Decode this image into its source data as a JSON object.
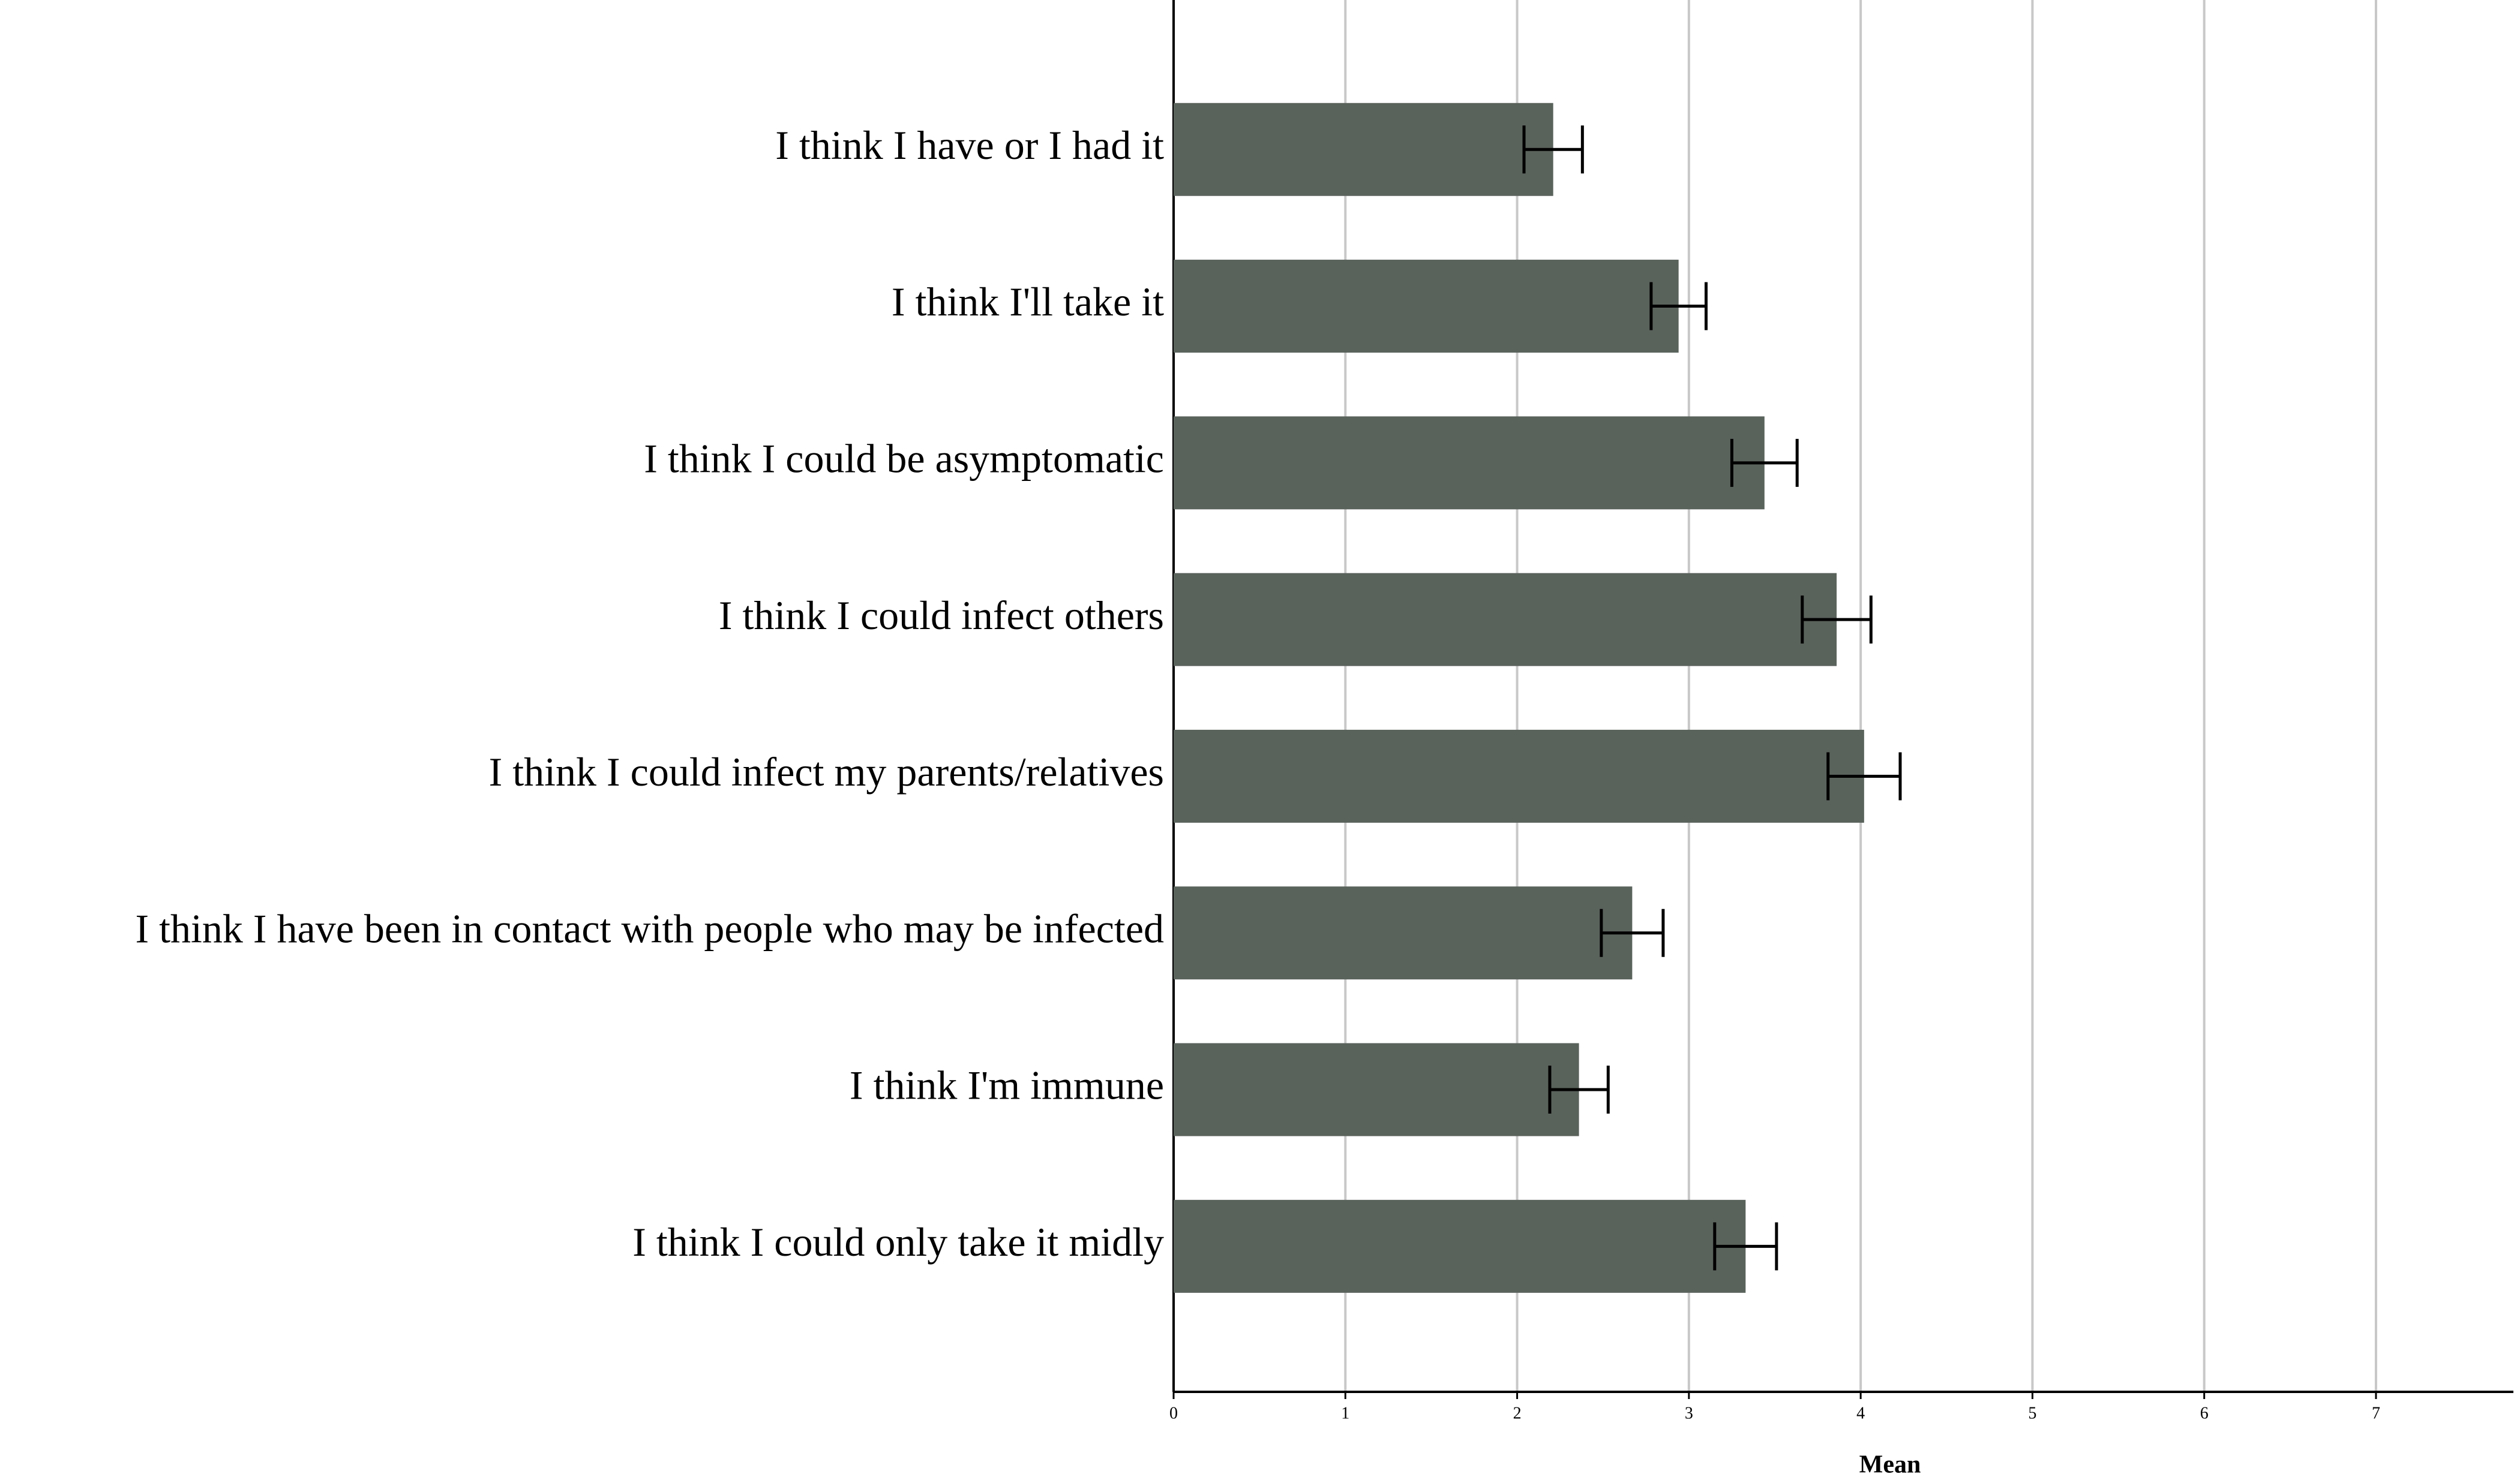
{
  "chart_data": {
    "type": "hbar",
    "x_label": "Mean",
    "categories": [
      "I think I have or I had it",
      "I think I'll take it",
      "I think I could be asymptomatic",
      "I think I could infect others",
      "I think I could infect my parents/relatives",
      "I think I have been in contact with people who may be infected",
      "I think I'm immune",
      "I think I could only take it midly"
    ],
    "values": [
      2.21,
      2.94,
      3.44,
      3.86,
      4.02,
      2.67,
      2.36,
      3.33
    ],
    "errors": [
      0.17,
      0.16,
      0.19,
      0.2,
      0.21,
      0.18,
      0.17,
      0.18
    ],
    "color": "#5a625c",
    "xlim": [
      0,
      7.8
    ],
    "xticks": [
      0,
      1,
      2,
      3,
      4,
      5,
      6,
      7
    ],
    "grid": true
  }
}
